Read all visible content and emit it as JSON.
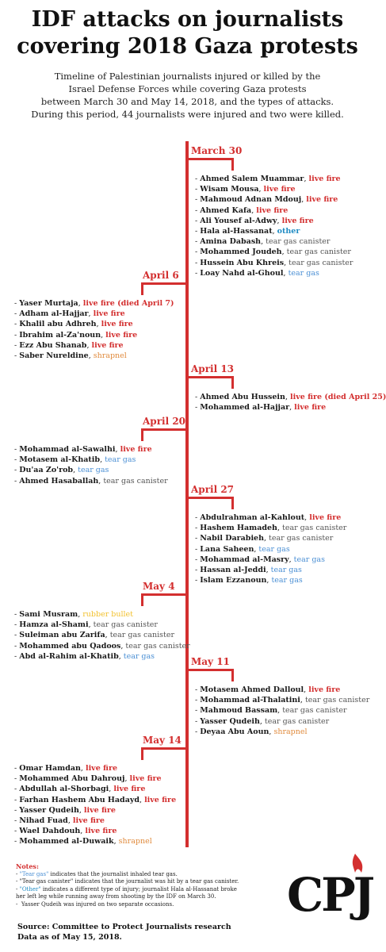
{
  "title_line1": "IDF attacks on journalists",
  "title_line2": "covering 2018 Gaza protests",
  "subtitle_lines": [
    "Timeline of Palestinian journalists injured or killed by the",
    "Israel Defense Forces while covering Gaza protests",
    "between March 30 and May 14, 2018, and the types of attacks.",
    "During this period, 44 journalists were injured and two were killed."
  ],
  "colors": {
    "accent": "#d32f2f",
    "live_fire": "#d32f2f",
    "tear_gas": "#4a8fd4",
    "tear_gas_canister": "#555555",
    "other": "#1e8bc3",
    "shrapnel": "#e08a3c",
    "rubber_bullet": "#f2c12e"
  },
  "timeline": [
    {
      "date": "March 30",
      "side": "right",
      "entries": [
        {
          "name": "Ahmed Salem Muammar",
          "attack": "live fire",
          "type": "live_fire"
        },
        {
          "name": "Wisam Mousa",
          "attack": "live fire",
          "type": "live_fire"
        },
        {
          "name": "Mahmoud Adnan Mdouj",
          "attack": "live fire",
          "type": "live_fire"
        },
        {
          "name": "Ahmed Kafa",
          "attack": "live fire",
          "type": "live_fire"
        },
        {
          "name": "Ali Yousef al-Adwy",
          "attack": "live fire",
          "type": "live_fire"
        },
        {
          "name": "Hala al-Hassanat",
          "attack": "other",
          "type": "other"
        },
        {
          "name": "Amina Dabash",
          "attack": "tear gas canister",
          "type": "tear_gas_canister"
        },
        {
          "name": "Mohammed Joudeh",
          "attack": "tear gas canister",
          "type": "tear_gas_canister"
        },
        {
          "name": "Hussein Abu Khreis",
          "attack": "tear gas canister",
          "type": "tear_gas_canister"
        },
        {
          "name": "Loay Nahd al-Ghoul",
          "attack": "tear gas",
          "type": "tear_gas"
        }
      ]
    },
    {
      "date": "April 6",
      "side": "left",
      "entries": [
        {
          "name": "Yaser Murtaja",
          "attack": "live fire (died April 7)",
          "type": "live_fire"
        },
        {
          "name": "Adham al-Hajjar",
          "attack": "live fire",
          "type": "live_fire"
        },
        {
          "name": "Khalil abu Adhreh",
          "attack": "live fire",
          "type": "live_fire"
        },
        {
          "name": "Ibrahim al-Za'noun",
          "attack": "live fire",
          "type": "live_fire"
        },
        {
          "name": "Ezz Abu Shanab",
          "attack": "live fire",
          "type": "live_fire"
        },
        {
          "name": "Saber Nureldine",
          "attack": "shrapnel",
          "type": "shrapnel"
        }
      ]
    },
    {
      "date": "April 13",
      "side": "right",
      "entries": [
        {
          "name": "Ahmed Abu Hussein",
          "attack": "live fire (died April 25)",
          "type": "live_fire"
        },
        {
          "name": "Mohammed al-Hajjar",
          "attack": "live fire",
          "type": "live_fire"
        }
      ]
    },
    {
      "date": "April 20",
      "side": "left",
      "entries": [
        {
          "name": "Mohammad al-Sawalhi",
          "attack": "live fire",
          "type": "live_fire"
        },
        {
          "name": "Motasem al-Khatib",
          "attack": "tear gas",
          "type": "tear_gas"
        },
        {
          "name": "Du'aa Zo'rob",
          "attack": "tear gas",
          "type": "tear_gas"
        },
        {
          "name": "Ahmed Hasaballah",
          "attack": "tear gas canister",
          "type": "tear_gas_canister"
        }
      ]
    },
    {
      "date": "April 27",
      "side": "right",
      "entries": [
        {
          "name": "Abdulrahman al-Kahlout",
          "attack": "live fire",
          "type": "live_fire"
        },
        {
          "name": "Hashem Hamadeh",
          "attack": "tear gas canister",
          "type": "tear_gas_canister"
        },
        {
          "name": "Nabil Darabieh",
          "attack": "tear gas canister",
          "type": "tear_gas_canister"
        },
        {
          "name": "Lana Saheen",
          "attack": "tear gas",
          "type": "tear_gas"
        },
        {
          "name": "Mohammad al-Masry",
          "attack": "tear gas",
          "type": "tear_gas"
        },
        {
          "name": "Hassan al-Jeddi",
          "attack": "tear gas",
          "type": "tear_gas"
        },
        {
          "name": "Islam Ezzanoun",
          "attack": "tear gas",
          "type": "tear_gas"
        }
      ]
    },
    {
      "date": "May 4",
      "side": "left",
      "entries": [
        {
          "name": "Sami Musram",
          "attack": "rubber bullet",
          "type": "rubber_bullet"
        },
        {
          "name": "Hamza al-Shami",
          "attack": "tear gas canister",
          "type": "tear_gas_canister"
        },
        {
          "name": "Suleiman abu Zarifa",
          "attack": "tear gas canister",
          "type": "tear_gas_canister"
        },
        {
          "name": "Mohammed abu Qadoos",
          "attack": "tear gas canister",
          "type": "tear_gas_canister"
        },
        {
          "name": "Abd al-Rahim al-Khatib",
          "attack": "tear gas",
          "type": "tear_gas"
        }
      ]
    },
    {
      "date": "May 11",
      "side": "right",
      "entries": [
        {
          "name": "Motasem Ahmed Dalloul",
          "attack": "live fire",
          "type": "live_fire"
        },
        {
          "name": "Mohammad al-Thalatini",
          "attack": "tear gas canister",
          "type": "tear_gas_canister"
        },
        {
          "name": "Mahmoud Bassam",
          "attack": "tear gas canister",
          "type": "tear_gas_canister"
        },
        {
          "name": "Yasser Qudeih",
          "attack": "tear gas canister",
          "type": "tear_gas_canister"
        },
        {
          "name": "Deyaa Abu Aoun",
          "attack": "shrapnel",
          "type": "shrapnel"
        }
      ]
    },
    {
      "date": "May 14",
      "side": "left",
      "entries": [
        {
          "name": "Omar Hamdan",
          "attack": "live fire",
          "type": "live_fire"
        },
        {
          "name": "Mohammed Abu Dahrouj",
          "attack": "live fire",
          "type": "live_fire"
        },
        {
          "name": "Abdullah al-Shorbagi",
          "attack": "live fire",
          "type": "live_fire"
        },
        {
          "name": "Farhan Hashem Abu Hadayd",
          "attack": "live fire",
          "type": "live_fire"
        },
        {
          "name": "Yasser Qudeih",
          "attack": "live fire",
          "type": "live_fire"
        },
        {
          "name": "Nihad Fuad",
          "attack": "live fire",
          "type": "live_fire"
        },
        {
          "name": "Wael Dahdouh",
          "attack": "live fire",
          "type": "live_fire"
        },
        {
          "name": "Mohammed al-Duwaik",
          "attack": "shrapnel",
          "type": "shrapnel"
        }
      ]
    }
  ],
  "notes": {
    "title": "Notes:",
    "line1_key": "\"Tear gas\"",
    "line1_text": " indicates that the journalist inhaled tear gas.",
    "line2_text": "\"Tear gas canister\" indicates that the journalist was hit by a tear gas canister.",
    "line3_key": "\"Other\"",
    "line3_text": " indicates a different type of injury; journalist Hala al-Hassanat broke",
    "line4_text": "her left leg while running away from shooting by the IDF on March 30.",
    "line5_text": "Yasser Qudeih was injured on two separate occasions."
  },
  "source": {
    "line1": "Source: Committee to Protect Journalists research",
    "line2": "Data as of May 15, 2018."
  },
  "logo_text": "CPJ"
}
